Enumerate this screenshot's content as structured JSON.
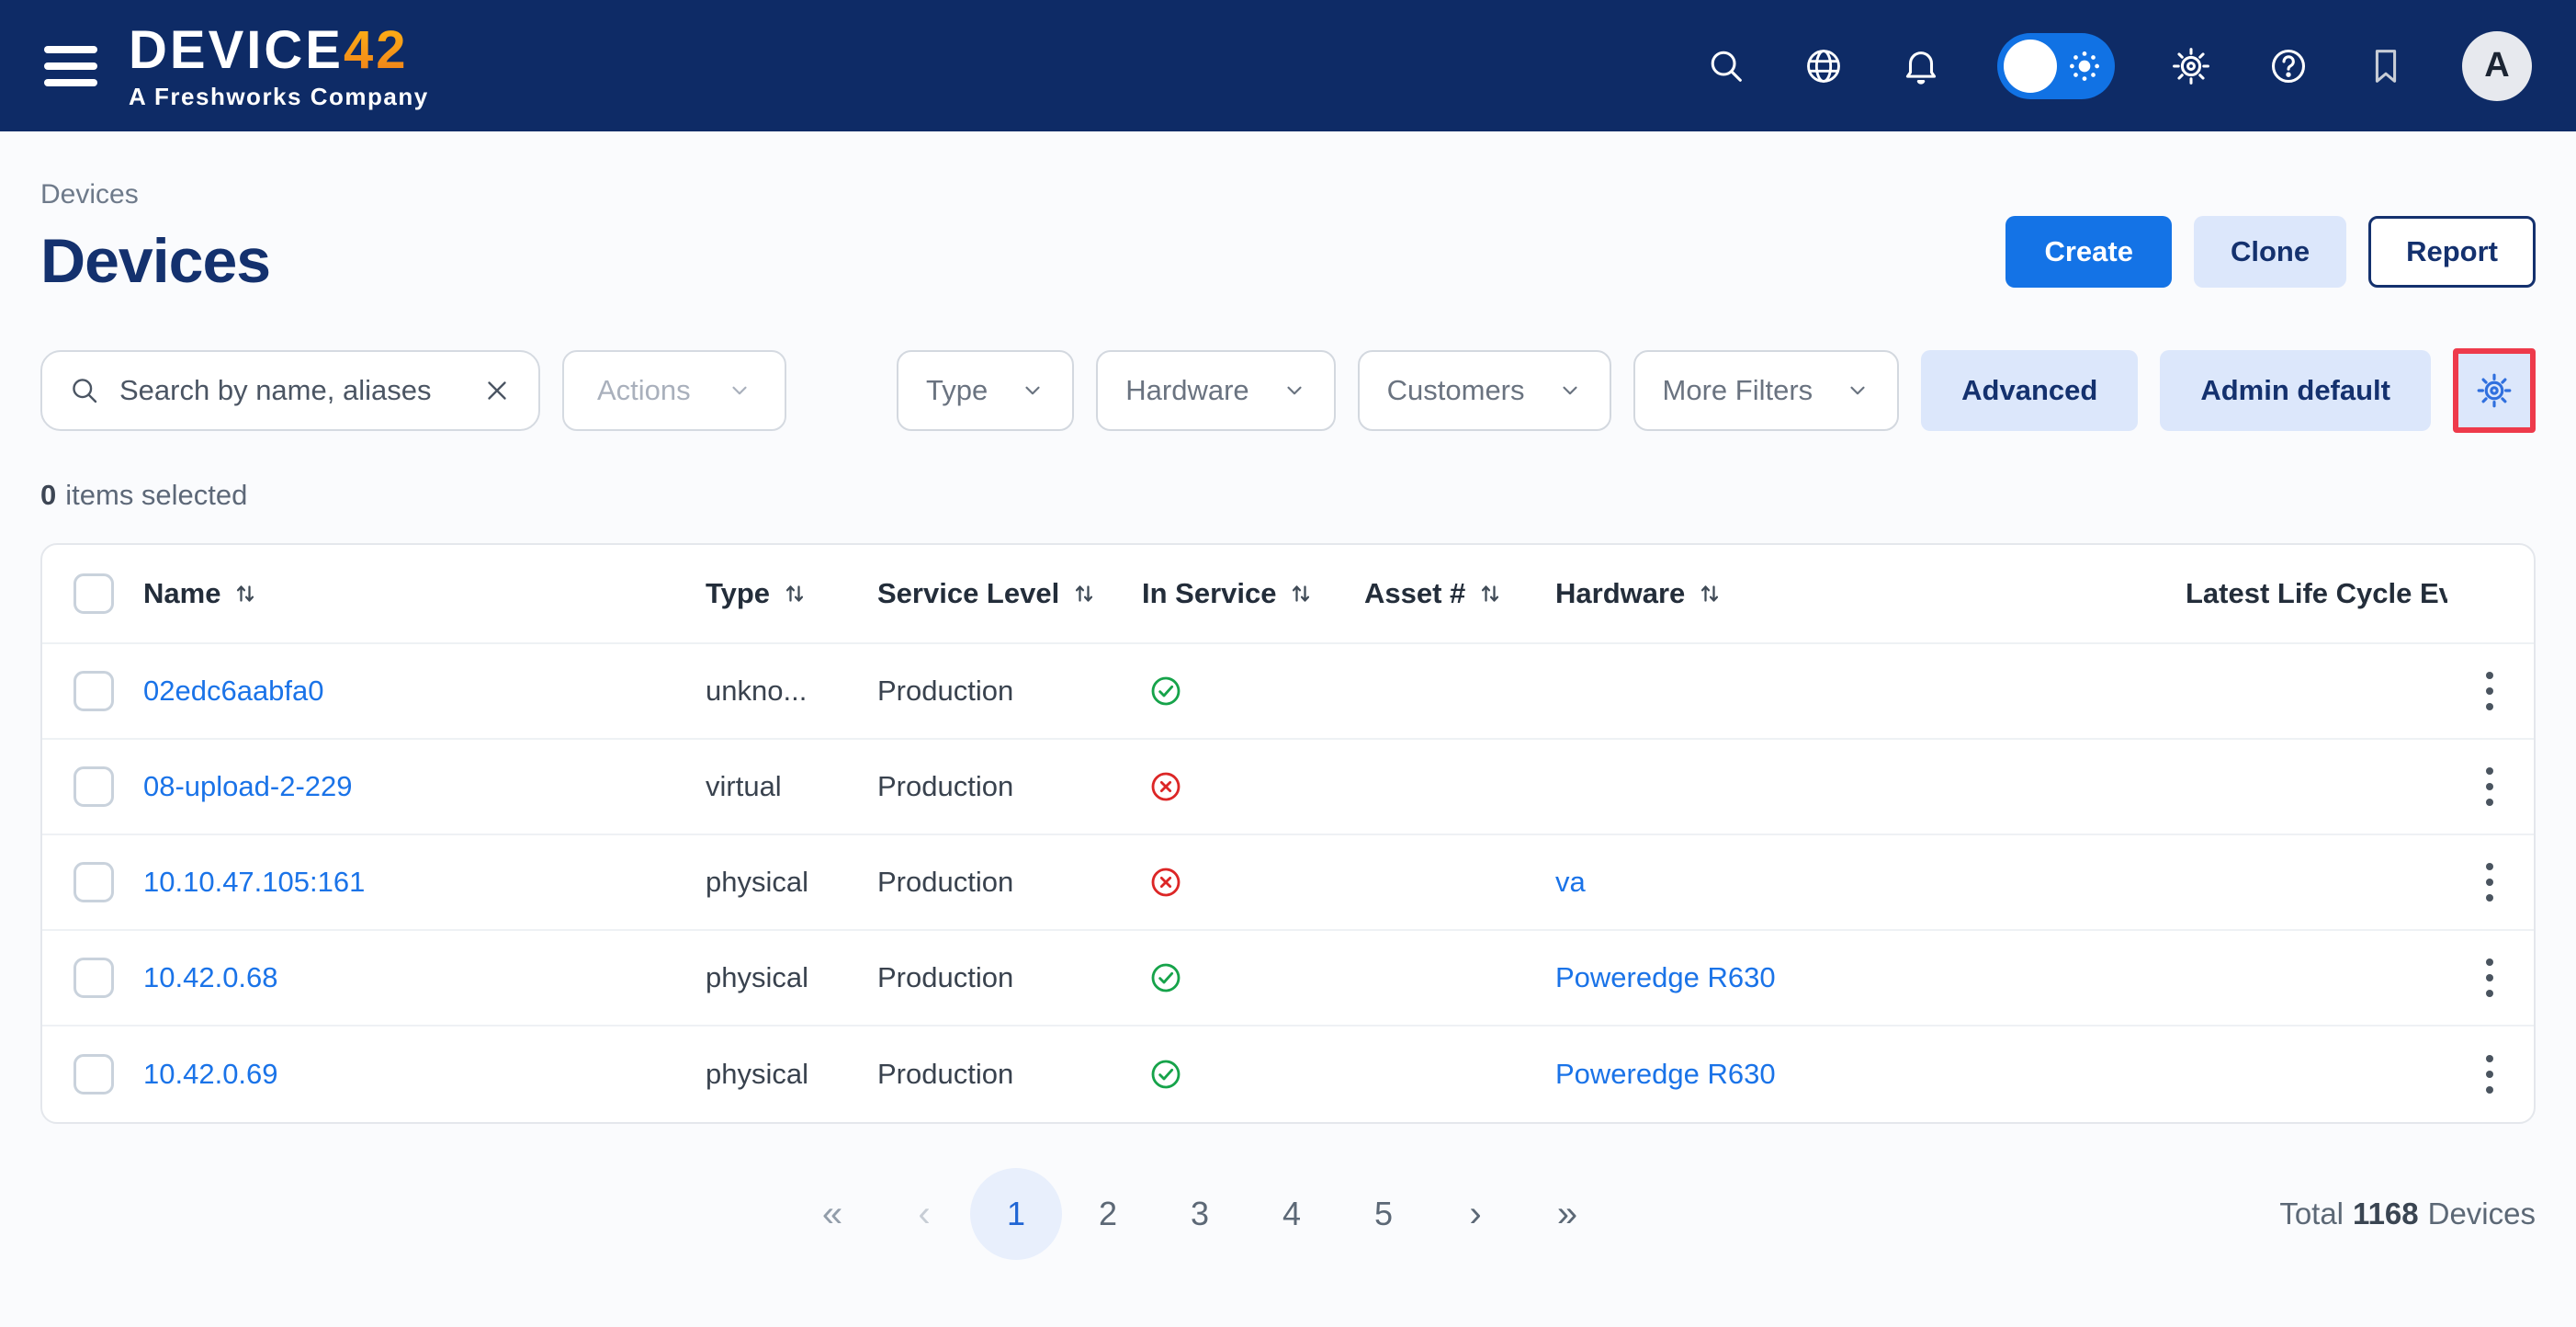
{
  "colors": {
    "navbar_bg": "#0e2b66",
    "primary_blue": "#1473e6",
    "link_blue": "#1a73e8",
    "soft_blue_bg": "#dce7fb",
    "navy_text": "#14316e",
    "success_green": "#16a34a",
    "error_red": "#dc2626",
    "annotation_red": "#ee3a4b",
    "logo_accent_orange": "#f79a1c"
  },
  "navbar": {
    "brand_main": "DEVICE",
    "brand_accent": "42",
    "subtitle": "A Freshworks Company",
    "avatar_letter": "A"
  },
  "header": {
    "breadcrumb": "Devices",
    "title": "Devices",
    "create_label": "Create",
    "clone_label": "Clone",
    "report_label": "Report"
  },
  "toolbar": {
    "search_placeholder": "Search by name, aliases",
    "actions_label": "Actions",
    "filters": [
      {
        "key": "type",
        "label": "Type"
      },
      {
        "key": "hardware",
        "label": "Hardware"
      },
      {
        "key": "customers",
        "label": "Customers"
      },
      {
        "key": "more-filters",
        "label": "More Filters"
      }
    ],
    "advanced_label": "Advanced",
    "saved_view_label": "Admin default"
  },
  "selection": {
    "count": "0",
    "label": "items selected"
  },
  "table": {
    "columns": [
      {
        "key": "name",
        "label": "Name",
        "sortable": true
      },
      {
        "key": "type",
        "label": "Type",
        "sortable": true
      },
      {
        "key": "service_level",
        "label": "Service Level",
        "sortable": true
      },
      {
        "key": "in_service",
        "label": "In Service",
        "sortable": true
      },
      {
        "key": "asset",
        "label": "Asset #",
        "sortable": true
      },
      {
        "key": "hardware",
        "label": "Hardware",
        "sortable": true
      },
      {
        "key": "latest",
        "label": "Latest Life Cycle Eve",
        "sortable": false
      }
    ],
    "rows": [
      {
        "name": "02edc6aabfa0",
        "type": "unkno...",
        "service_level": "Production",
        "in_service": true,
        "asset": "",
        "hardware": "",
        "latest": ""
      },
      {
        "name": "08-upload-2-229",
        "type": "virtual",
        "service_level": "Production",
        "in_service": false,
        "asset": "",
        "hardware": "",
        "latest": ""
      },
      {
        "name": "10.10.47.105:161",
        "type": "physical",
        "service_level": "Production",
        "in_service": false,
        "asset": "",
        "hardware": "va",
        "latest": ""
      },
      {
        "name": "10.42.0.68",
        "type": "physical",
        "service_level": "Production",
        "in_service": true,
        "asset": "",
        "hardware": "Poweredge R630",
        "latest": ""
      },
      {
        "name": "10.42.0.69",
        "type": "physical",
        "service_level": "Production",
        "in_service": true,
        "asset": "",
        "hardware": "Poweredge R630",
        "latest": ""
      }
    ]
  },
  "pagination": {
    "first": "«",
    "prev": "‹",
    "pages": [
      "1",
      "2",
      "3",
      "4",
      "5"
    ],
    "active": "1",
    "next": "›",
    "last": "»"
  },
  "footer": {
    "total_prefix": "Total",
    "total_count": "1168",
    "total_suffix": "Devices"
  }
}
